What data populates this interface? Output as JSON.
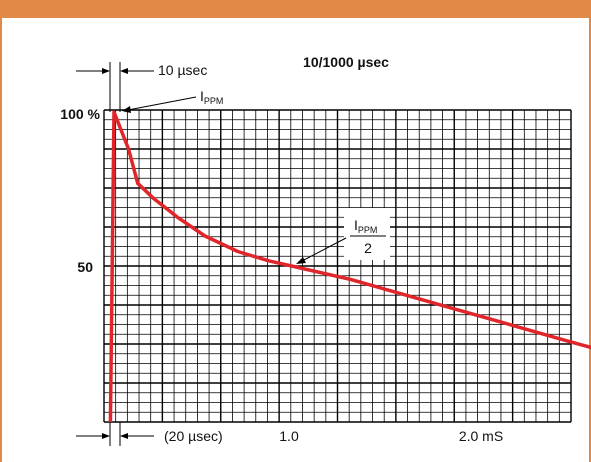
{
  "colors": {
    "accent": "#e28947",
    "curve": "#e0262b",
    "grid": "#000000"
  },
  "chart_data": {
    "type": "line",
    "title": "10/1000 µsec",
    "ylim": [
      0,
      100
    ],
    "y_ticks": [
      "100 %",
      "50"
    ],
    "x_tick_labels": [
      "1.0",
      "2.0 mS"
    ],
    "annotations": {
      "rise_time": "10 µsec",
      "pulse_start": "(20 µsec)",
      "peak_label_main": "I",
      "peak_label_sub": "PPM",
      "half_label_main": "I",
      "half_label_sub": "PPM",
      "half_label_den": "2"
    },
    "series": [
      {
        "x": [
          -0.02,
          0.0,
          0.08,
          0.13,
          0.22,
          0.35,
          0.5,
          0.68,
          0.85,
          1.0,
          1.3,
          1.6,
          1.9,
          2.2,
          2.5,
          2.75
        ],
        "y": [
          0,
          100,
          88,
          77,
          72,
          66,
          60,
          55,
          52,
          50,
          46,
          41,
          36,
          31,
          26,
          22
        ]
      }
    ],
    "grid": true
  }
}
